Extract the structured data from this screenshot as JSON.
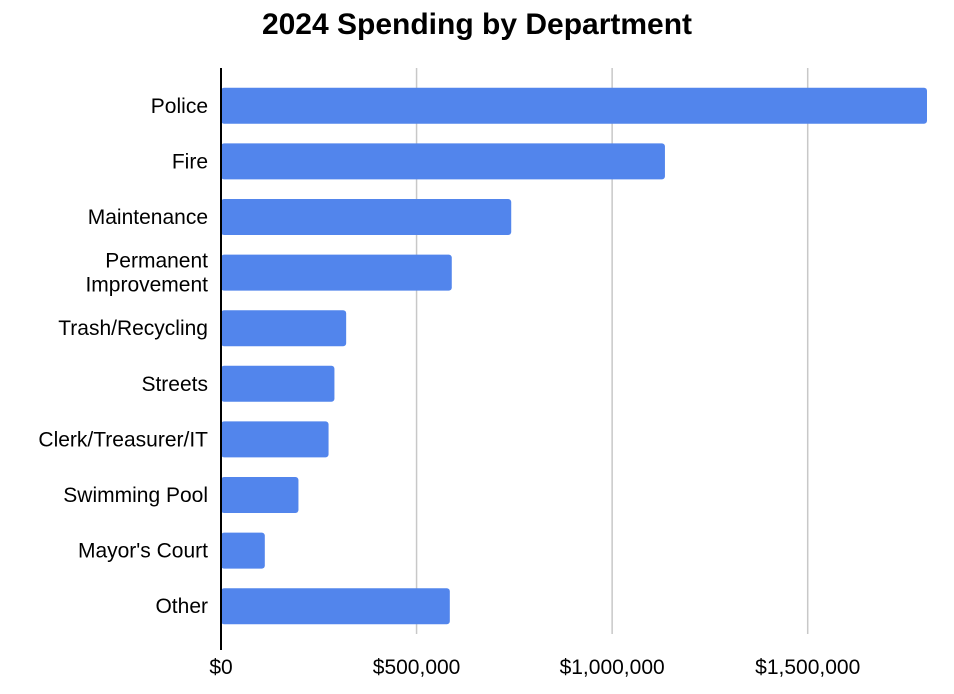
{
  "chart_data": {
    "type": "bar",
    "orientation": "horizontal",
    "title": "2024 Spending by Department",
    "xlabel": "",
    "ylabel": "",
    "categories": [
      [
        "Police"
      ],
      [
        "Fire"
      ],
      [
        "Maintenance"
      ],
      [
        "Permanent",
        "Improvement"
      ],
      [
        "Trash/Recycling"
      ],
      [
        "Streets"
      ],
      [
        "Clerk/Treasurer/IT"
      ],
      [
        "Swimming Pool"
      ],
      [
        "Mayor's Court"
      ],
      [
        "Other"
      ]
    ],
    "values": [
      1805000,
      1135000,
      742000,
      590000,
      320000,
      290000,
      275000,
      198000,
      112000,
      585000
    ],
    "xlim": [
      0,
      1805000
    ],
    "x_ticks": [
      0,
      500000,
      1000000,
      1500000
    ],
    "x_tick_labels": [
      "$0",
      "$500,000",
      "$1,000,000",
      "$1,500,000"
    ],
    "grid": "vertical",
    "bar_color": "#5285ec",
    "gridline_color": "#c8c8c8",
    "axis_color": "#000000"
  }
}
